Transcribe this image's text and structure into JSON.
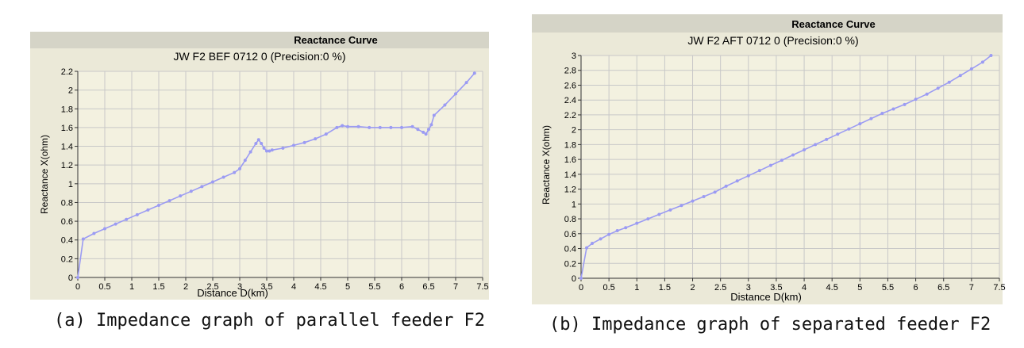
{
  "charts": [
    {
      "panel_title": "Reactance Curve",
      "caption": "(a) Impedance graph of parallel feeder F2"
    },
    {
      "panel_title": "Reactance Curve",
      "caption": "(b) Impedance graph of separated feeder F2"
    }
  ],
  "colors": {
    "frame_bg": "#ebe9d8",
    "header_bg": "#d5d4c7",
    "plot_bg": "#f3f1e0",
    "grid": "#c8c8c8",
    "series": "#9b9bf3"
  },
  "chart_data": [
    {
      "type": "line",
      "title": "JW F2 BEF 0712 0 (Precision:0 %)",
      "xlabel": "Distance D(km)",
      "ylabel": "Reactance X(ohm)",
      "xlim": [
        0,
        7.5
      ],
      "ylim": [
        0,
        2.2
      ],
      "grid": true,
      "xticks": [
        "0",
        "0.5",
        "1",
        "1.5",
        "2",
        "2.5",
        "3",
        "3.5",
        "4",
        "4.5",
        "5",
        "5.5",
        "6",
        "6.5",
        "7",
        "7.5"
      ],
      "yticks": [
        "0",
        "0.2",
        "0.4",
        "0.6",
        "0.8",
        "1",
        "1.2",
        "1.4",
        "1.6",
        "1.8",
        "2",
        "2.2"
      ],
      "series": [
        {
          "x": [
            0,
            0.1,
            0.3,
            0.5,
            0.7,
            0.9,
            1.1,
            1.3,
            1.5,
            1.7,
            1.9,
            2.1,
            2.3,
            2.5,
            2.7,
            2.9,
            3.0,
            3.1,
            3.2,
            3.3,
            3.35,
            3.4,
            3.45,
            3.5,
            3.55,
            3.6,
            3.8,
            4.0,
            4.2,
            4.4,
            4.6,
            4.8,
            4.9,
            5.0,
            5.2,
            5.4,
            5.6,
            5.8,
            6.0,
            6.2,
            6.3,
            6.4,
            6.45,
            6.5,
            6.55,
            6.6,
            6.8,
            7.0,
            7.2,
            7.35
          ],
          "y": [
            0.0,
            0.41,
            0.47,
            0.52,
            0.57,
            0.62,
            0.67,
            0.72,
            0.77,
            0.82,
            0.87,
            0.92,
            0.97,
            1.02,
            1.07,
            1.12,
            1.16,
            1.25,
            1.34,
            1.43,
            1.47,
            1.43,
            1.38,
            1.35,
            1.35,
            1.36,
            1.38,
            1.41,
            1.44,
            1.48,
            1.53,
            1.6,
            1.62,
            1.61,
            1.61,
            1.6,
            1.6,
            1.6,
            1.6,
            1.61,
            1.58,
            1.55,
            1.53,
            1.58,
            1.63,
            1.73,
            1.84,
            1.96,
            2.08,
            2.18
          ]
        }
      ]
    },
    {
      "type": "line",
      "title": "JW F2 AFT 0712 0 (Precision:0 %)",
      "xlabel": "Distance D(km)",
      "ylabel": "Reactance X(ohm)",
      "xlim": [
        0,
        7.5
      ],
      "ylim": [
        0,
        3
      ],
      "grid": true,
      "xticks": [
        "0",
        "0.5",
        "1",
        "1.5",
        "2",
        "2.5",
        "3",
        "3.5",
        "4",
        "4.5",
        "5",
        "5.5",
        "6",
        "6.5",
        "7",
        "7.5"
      ],
      "yticks": [
        "0",
        "0.2",
        "0.4",
        "0.6",
        "0.8",
        "1",
        "1.2",
        "1.4",
        "1.6",
        "1.8",
        "2",
        "2.2",
        "2.4",
        "2.6",
        "2.8",
        "3"
      ],
      "series": [
        {
          "x": [
            0,
            0.1,
            0.2,
            0.35,
            0.5,
            0.65,
            0.8,
            1.0,
            1.2,
            1.4,
            1.6,
            1.8,
            2.0,
            2.2,
            2.4,
            2.6,
            2.8,
            3.0,
            3.2,
            3.4,
            3.6,
            3.8,
            4.0,
            4.2,
            4.4,
            4.6,
            4.8,
            5.0,
            5.2,
            5.4,
            5.6,
            5.8,
            6.0,
            6.2,
            6.4,
            6.6,
            6.8,
            7.0,
            7.2,
            7.35
          ],
          "y": [
            0.0,
            0.41,
            0.47,
            0.53,
            0.59,
            0.64,
            0.68,
            0.74,
            0.8,
            0.86,
            0.92,
            0.98,
            1.04,
            1.1,
            1.16,
            1.24,
            1.31,
            1.38,
            1.45,
            1.52,
            1.59,
            1.66,
            1.73,
            1.8,
            1.87,
            1.94,
            2.01,
            2.08,
            2.15,
            2.22,
            2.28,
            2.34,
            2.41,
            2.48,
            2.56,
            2.64,
            2.73,
            2.82,
            2.91,
            3.0
          ]
        }
      ]
    }
  ]
}
